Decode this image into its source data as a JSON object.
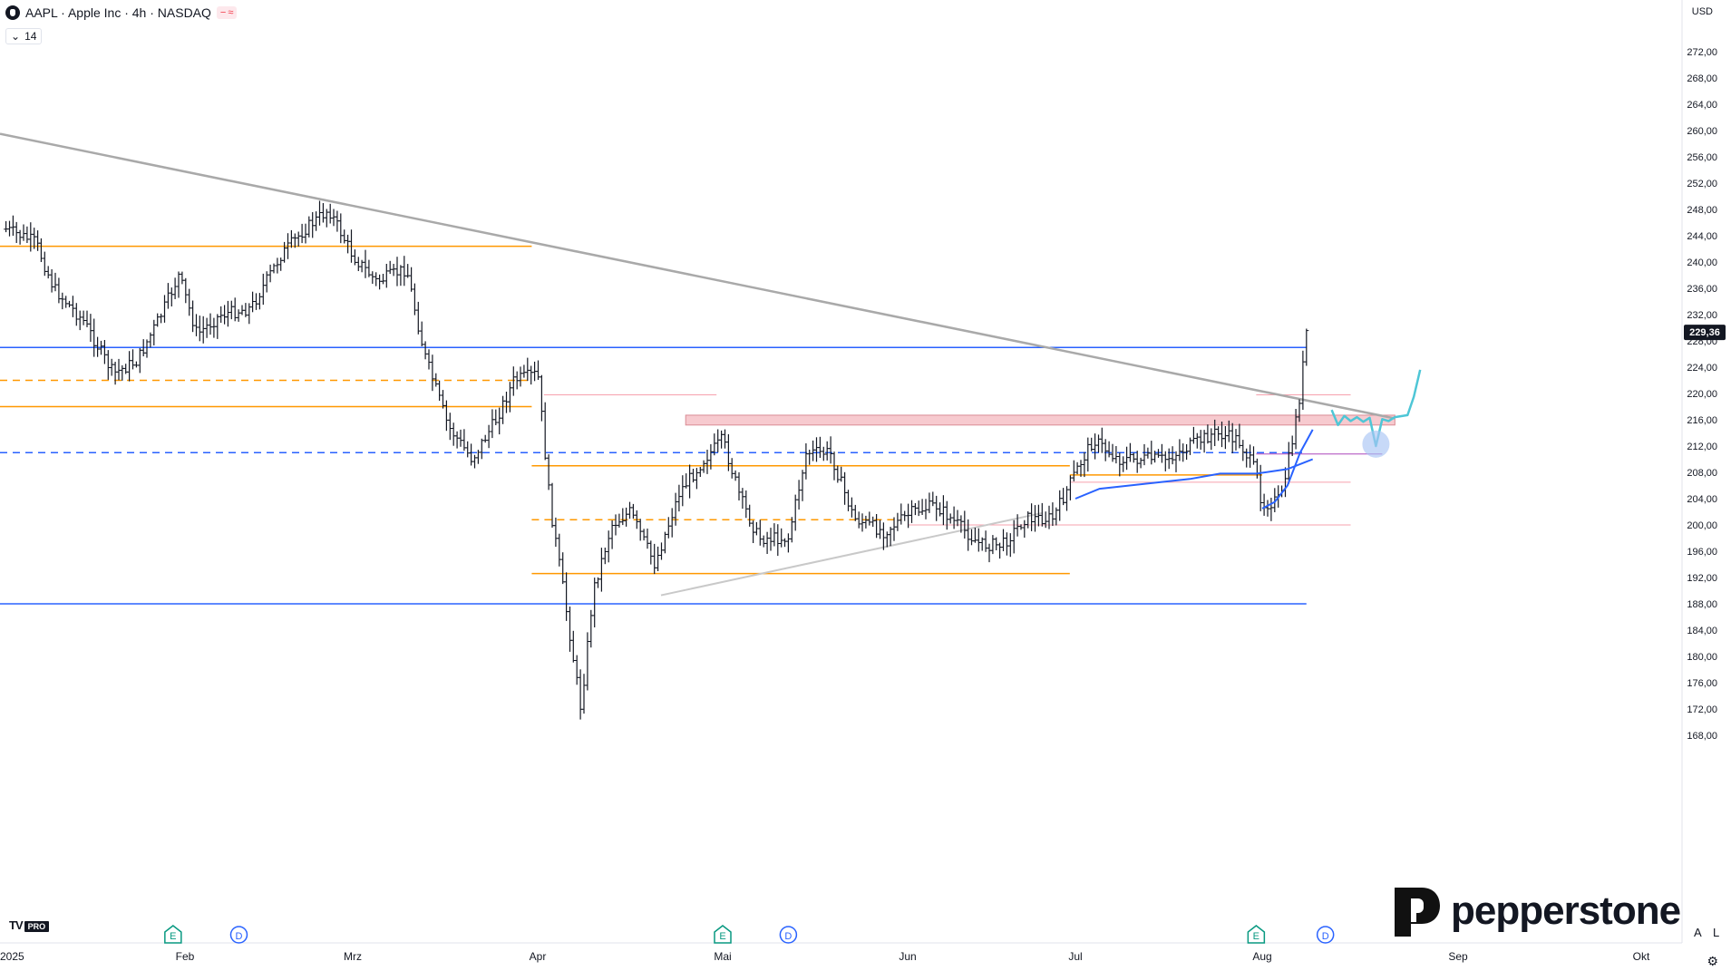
{
  "header": {
    "title": "AAPL · Apple Inc · 4h · NASDAQ",
    "pill_icons": [
      "minus-icon",
      "wave-icon"
    ],
    "pill_text_a": "−",
    "pill_text_b": "≈",
    "indicator_value": "14",
    "currency": "USD"
  },
  "brand": {
    "tvpro_prefix": "TV",
    "tvpro_badge": "PRO",
    "name": "pepperstone"
  },
  "controls": {
    "auto": "A",
    "log": "L",
    "settings_icon": "gear-icon"
  },
  "chart_data": {
    "type": "candlestick",
    "symbol": "AAPL",
    "interval": "4h",
    "exchange": "NASDAQ",
    "y_axis": {
      "side": "right",
      "range": [
        166,
        274
      ],
      "ticks": [
        272,
        268,
        264,
        260,
        256,
        252,
        248,
        244,
        240,
        236,
        232,
        228,
        224,
        220,
        216,
        212,
        208,
        204,
        200,
        196,
        192,
        188,
        184,
        180,
        176,
        172,
        168
      ],
      "tick_labels": [
        "272,00",
        "268,00",
        "264,00",
        "260,00",
        "256,00",
        "252,00",
        "248,00",
        "244,00",
        "240,00",
        "236,00",
        "232,00",
        "228,00",
        "224,00",
        "220,00",
        "216,00",
        "212,00",
        "208,00",
        "204,00",
        "200,00",
        "196,00",
        "192,00",
        "188,00",
        "184,00",
        "180,00",
        "176,00",
        "172,00",
        "168,00"
      ]
    },
    "x_axis": {
      "date_range": [
        "2025-01-01",
        "2025-10-06"
      ],
      "ticks": [
        {
          "label": "2025",
          "date": "2025-01-01"
        },
        {
          "label": "Feb",
          "date": "2025-02-01"
        },
        {
          "label": "Mrz",
          "date": "2025-03-01"
        },
        {
          "label": "Apr",
          "date": "2025-04-01"
        },
        {
          "label": "Mai",
          "date": "2025-05-01"
        },
        {
          "label": "Jun",
          "date": "2025-06-01"
        },
        {
          "label": "Jul",
          "date": "2025-07-01"
        },
        {
          "label": "Aug",
          "date": "2025-08-01"
        },
        {
          "label": "Sep",
          "date": "2025-09-01"
        },
        {
          "label": "Okt",
          "date": "2025-10-01"
        }
      ]
    },
    "last_price": {
      "value": 229.36,
      "label": "229,36"
    },
    "price_path": [
      {
        "date": "2025-01-02",
        "price": 245
      },
      {
        "date": "2025-01-07",
        "price": 243
      },
      {
        "date": "2025-01-10",
        "price": 236
      },
      {
        "date": "2025-01-15",
        "price": 231
      },
      {
        "date": "2025-01-20",
        "price": 223
      },
      {
        "date": "2025-01-24",
        "price": 225
      },
      {
        "date": "2025-01-28",
        "price": 232
      },
      {
        "date": "2025-01-31",
        "price": 238
      },
      {
        "date": "2025-02-03",
        "price": 229
      },
      {
        "date": "2025-02-07",
        "price": 232
      },
      {
        "date": "2025-02-12",
        "price": 233
      },
      {
        "date": "2025-02-17",
        "price": 241
      },
      {
        "date": "2025-02-21",
        "price": 245
      },
      {
        "date": "2025-02-25",
        "price": 248
      },
      {
        "date": "2025-03-01",
        "price": 241
      },
      {
        "date": "2025-03-05",
        "price": 237
      },
      {
        "date": "2025-03-10",
        "price": 239
      },
      {
        "date": "2025-03-13",
        "price": 226
      },
      {
        "date": "2025-03-17",
        "price": 215
      },
      {
        "date": "2025-03-21",
        "price": 210
      },
      {
        "date": "2025-03-25",
        "price": 216
      },
      {
        "date": "2025-03-28",
        "price": 222
      },
      {
        "date": "2025-04-01",
        "price": 223
      },
      {
        "date": "2025-04-03",
        "price": 203
      },
      {
        "date": "2025-04-05",
        "price": 191
      },
      {
        "date": "2025-04-08",
        "price": 172
      },
      {
        "date": "2025-04-10",
        "price": 190
      },
      {
        "date": "2025-04-13",
        "price": 200
      },
      {
        "date": "2025-04-16",
        "price": 202
      },
      {
        "date": "2025-04-20",
        "price": 194
      },
      {
        "date": "2025-04-24",
        "price": 205
      },
      {
        "date": "2025-04-28",
        "price": 210
      },
      {
        "date": "2025-05-01",
        "price": 213
      },
      {
        "date": "2025-05-04",
        "price": 204
      },
      {
        "date": "2025-05-07",
        "price": 198
      },
      {
        "date": "2025-05-12",
        "price": 198
      },
      {
        "date": "2025-05-15",
        "price": 211
      },
      {
        "date": "2025-05-19",
        "price": 211
      },
      {
        "date": "2025-05-23",
        "price": 201
      },
      {
        "date": "2025-05-28",
        "price": 199
      },
      {
        "date": "2025-06-02",
        "price": 202
      },
      {
        "date": "2025-06-06",
        "price": 203
      },
      {
        "date": "2025-06-10",
        "price": 200
      },
      {
        "date": "2025-06-14",
        "price": 197
      },
      {
        "date": "2025-06-18",
        "price": 197
      },
      {
        "date": "2025-06-22",
        "price": 201
      },
      {
        "date": "2025-06-27",
        "price": 201
      },
      {
        "date": "2025-07-01",
        "price": 208
      },
      {
        "date": "2025-07-04",
        "price": 213
      },
      {
        "date": "2025-07-08",
        "price": 210
      },
      {
        "date": "2025-07-12",
        "price": 210
      },
      {
        "date": "2025-07-16",
        "price": 210
      },
      {
        "date": "2025-07-20",
        "price": 212
      },
      {
        "date": "2025-07-24",
        "price": 214
      },
      {
        "date": "2025-07-28",
        "price": 213
      },
      {
        "date": "2025-07-31",
        "price": 208
      },
      {
        "date": "2025-08-01",
        "price": 203
      },
      {
        "date": "2025-08-04",
        "price": 204
      },
      {
        "date": "2025-08-06",
        "price": 214
      },
      {
        "date": "2025-08-07",
        "price": 220
      },
      {
        "date": "2025-08-08",
        "price": 229.36
      }
    ],
    "horizontal_levels": [
      {
        "price": 227.0,
        "color": "#2962ff",
        "style": "solid",
        "from": "2025-01-01",
        "to": "2025-08-08"
      },
      {
        "price": 188.0,
        "color": "#2962ff",
        "style": "solid",
        "from": "2025-01-01",
        "to": "2025-08-08"
      },
      {
        "price": 211.0,
        "color": "#2962ff",
        "style": "dashed",
        "from": "2025-01-01",
        "to": "2025-08-08"
      },
      {
        "price": 242.4,
        "color": "#ff9800",
        "style": "solid",
        "from": "2025-01-01",
        "to": "2025-03-31"
      },
      {
        "price": 218.0,
        "color": "#ff9800",
        "style": "solid",
        "from": "2025-01-01",
        "to": "2025-03-31"
      },
      {
        "price": 222.0,
        "color": "#ff9800",
        "style": "dashed",
        "from": "2025-01-01",
        "to": "2025-03-31"
      },
      {
        "price": 209.0,
        "color": "#ff9800",
        "style": "solid",
        "from": "2025-03-31",
        "to": "2025-06-30"
      },
      {
        "price": 192.6,
        "color": "#ff9800",
        "style": "solid",
        "from": "2025-03-31",
        "to": "2025-06-30"
      },
      {
        "price": 200.8,
        "color": "#ff9800",
        "style": "dashed",
        "from": "2025-03-31",
        "to": "2025-05-31"
      },
      {
        "price": 207.6,
        "color": "#ff9800",
        "style": "solid",
        "from": "2025-06-30",
        "to": "2025-08-01"
      },
      {
        "price": 219.8,
        "color": "#f7a1ae",
        "style": "solid",
        "from": "2025-04-02",
        "to": "2025-04-30"
      },
      {
        "price": 219.8,
        "color": "#f7a1ae",
        "style": "solid",
        "from": "2025-07-31",
        "to": "2025-08-15"
      },
      {
        "price": 200.0,
        "color": "#f7a1ae",
        "style": "solid",
        "from": "2025-06-01",
        "to": "2025-08-15"
      },
      {
        "price": 206.5,
        "color": "#f7a1ae",
        "style": "solid",
        "from": "2025-06-30",
        "to": "2025-08-15"
      },
      {
        "price": 210.8,
        "color": "#ab47bc",
        "style": "solid",
        "from": "2025-07-31",
        "to": "2025-08-20"
      }
    ],
    "resistance_zone": {
      "from": "2025-04-25",
      "to": "2025-08-22",
      "price_top": 216.7,
      "price_bottom": 215.2,
      "color": "#f4b8bf"
    },
    "trendlines": [
      {
        "name": "descending",
        "from": {
          "date": "2025-01-01",
          "price": 259.5
        },
        "to": {
          "date": "2025-08-22",
          "price": 216.2
        },
        "color": "#a9a9a9"
      },
      {
        "name": "ascending",
        "from": {
          "date": "2025-04-21",
          "price": 189.3
        },
        "to": {
          "date": "2025-06-25",
          "price": 201.8
        },
        "color": "#c9c9c9"
      }
    ],
    "moving_averages": [
      {
        "color": "#2962ff",
        "points": [
          {
            "date": "2025-07-01",
            "price": 204
          },
          {
            "date": "2025-07-05",
            "price": 205.5
          },
          {
            "date": "2025-07-10",
            "price": 206
          },
          {
            "date": "2025-07-15",
            "price": 206.5
          },
          {
            "date": "2025-07-20",
            "price": 207
          },
          {
            "date": "2025-07-25",
            "price": 207.8
          },
          {
            "date": "2025-07-31",
            "price": 207.8
          },
          {
            "date": "2025-08-05",
            "price": 208.5
          },
          {
            "date": "2025-08-09",
            "price": 210
          }
        ]
      },
      {
        "color": "#2962ff",
        "points": [
          {
            "date": "2025-08-01",
            "price": 202.5
          },
          {
            "date": "2025-08-03",
            "price": 203.5
          },
          {
            "date": "2025-08-05",
            "price": 206
          },
          {
            "date": "2025-08-07",
            "price": 211
          },
          {
            "date": "2025-08-09",
            "price": 214.5
          }
        ]
      }
    ],
    "projection": {
      "color": "#4ec6d6",
      "points": [
        {
          "date": "2025-08-12",
          "price": 217.5
        },
        {
          "date": "2025-08-13",
          "price": 215.2
        },
        {
          "date": "2025-08-14",
          "price": 216.6
        },
        {
          "date": "2025-08-15",
          "price": 215.8
        },
        {
          "date": "2025-08-16",
          "price": 216.4
        },
        {
          "date": "2025-08-17",
          "price": 215.7
        },
        {
          "date": "2025-08-18",
          "price": 216.3
        },
        {
          "date": "2025-08-19",
          "price": 212.0
        },
        {
          "date": "2025-08-20",
          "price": 216.1
        },
        {
          "date": "2025-08-21",
          "price": 215.8
        },
        {
          "date": "2025-08-22",
          "price": 216.4
        },
        {
          "date": "2025-08-24",
          "price": 216.7
        },
        {
          "date": "2025-08-25",
          "price": 219.5
        },
        {
          "date": "2025-08-26",
          "price": 223.6
        }
      ]
    },
    "highlight_circle": {
      "date": "2025-08-19",
      "price": 212.3,
      "color": "#a9c4f5"
    },
    "events": [
      {
        "type": "E",
        "date": "2025-01-30",
        "color": "#089981"
      },
      {
        "type": "D",
        "date": "2025-02-10",
        "color": "#2962ff"
      },
      {
        "type": "E",
        "date": "2025-05-01",
        "color": "#089981"
      },
      {
        "type": "D",
        "date": "2025-05-12",
        "color": "#2962ff"
      },
      {
        "type": "E",
        "date": "2025-07-31",
        "color": "#089981"
      },
      {
        "type": "D",
        "date": "2025-08-11",
        "color": "#2962ff"
      }
    ]
  }
}
